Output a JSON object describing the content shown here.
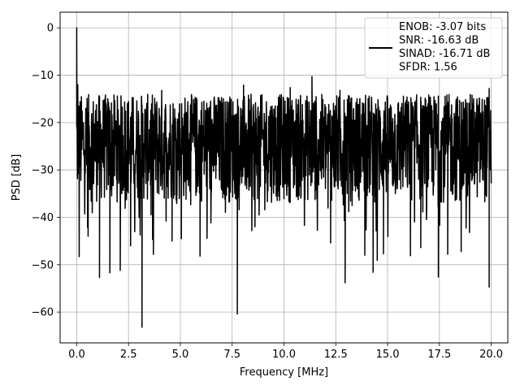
{
  "chart_data": {
    "type": "line",
    "xlabel": "Frequency [MHz]",
    "ylabel": "PSD [dB]",
    "xlim": [
      -0.8,
      20.8
    ],
    "ylim": [
      -66.5,
      3.3
    ],
    "xticks": [
      0.0,
      2.5,
      5.0,
      7.5,
      10.0,
      12.5,
      15.0,
      17.5,
      20.0
    ],
    "xtick_labels": [
      "0.0",
      "2.5",
      "5.0",
      "7.5",
      "10.0",
      "12.5",
      "15.0",
      "17.5",
      "20.0"
    ],
    "yticks": [
      0,
      -10,
      -20,
      -30,
      -40,
      -50,
      -60
    ],
    "ytick_labels": [
      "0",
      "−10",
      "−20",
      "−30",
      "−40",
      "−50",
      "−60"
    ],
    "grid": true,
    "line_color": "#000000",
    "legend_position": "top-right",
    "legend_lines": [
      "ENOB: -3.07 bits",
      "SNR: -16.63 dB",
      "SINAD: -16.71 dB",
      "SFDR: 1.56"
    ],
    "series": [
      {
        "x_range": [
          0.0,
          20.0
        ],
        "typical_range": [
          -37,
          -14
        ],
        "notes": "dense noise floor around -25 dB with spike at DC",
        "notable_points": [
          {
            "x": 0.0,
            "y": 0.0
          },
          {
            "x": 0.05,
            "y": -12.0
          },
          {
            "x": 0.12,
            "y": -48.3
          },
          {
            "x": 0.55,
            "y": -44.0
          },
          {
            "x": 1.1,
            "y": -52.7
          },
          {
            "x": 1.6,
            "y": -51.7
          },
          {
            "x": 2.1,
            "y": -51.2
          },
          {
            "x": 2.6,
            "y": -46.0
          },
          {
            "x": 3.15,
            "y": -63.2
          },
          {
            "x": 3.7,
            "y": -47.8
          },
          {
            "x": 4.6,
            "y": -45.0
          },
          {
            "x": 5.05,
            "y": -44.5
          },
          {
            "x": 5.95,
            "y": -48.2
          },
          {
            "x": 7.75,
            "y": -60.4
          },
          {
            "x": 8.6,
            "y": -42.0
          },
          {
            "x": 12.25,
            "y": -45.4
          },
          {
            "x": 12.95,
            "y": -53.8
          },
          {
            "x": 13.9,
            "y": -48.0
          },
          {
            "x": 14.3,
            "y": -51.6
          },
          {
            "x": 14.5,
            "y": -49.1
          },
          {
            "x": 14.8,
            "y": -47.7
          },
          {
            "x": 16.1,
            "y": -48.1
          },
          {
            "x": 16.6,
            "y": -46.4
          },
          {
            "x": 17.45,
            "y": -52.6
          },
          {
            "x": 17.9,
            "y": -47.8
          },
          {
            "x": 18.55,
            "y": -47.2
          },
          {
            "x": 19.9,
            "y": -54.7
          },
          {
            "x": 11.35,
            "y": -10.3
          },
          {
            "x": 8.05,
            "y": -12.1
          },
          {
            "x": 10.3,
            "y": -12.6
          },
          {
            "x": 4.1,
            "y": -13.2
          },
          {
            "x": 12.7,
            "y": -13.2
          },
          {
            "x": 19.9,
            "y": -12.8
          }
        ]
      }
    ]
  }
}
